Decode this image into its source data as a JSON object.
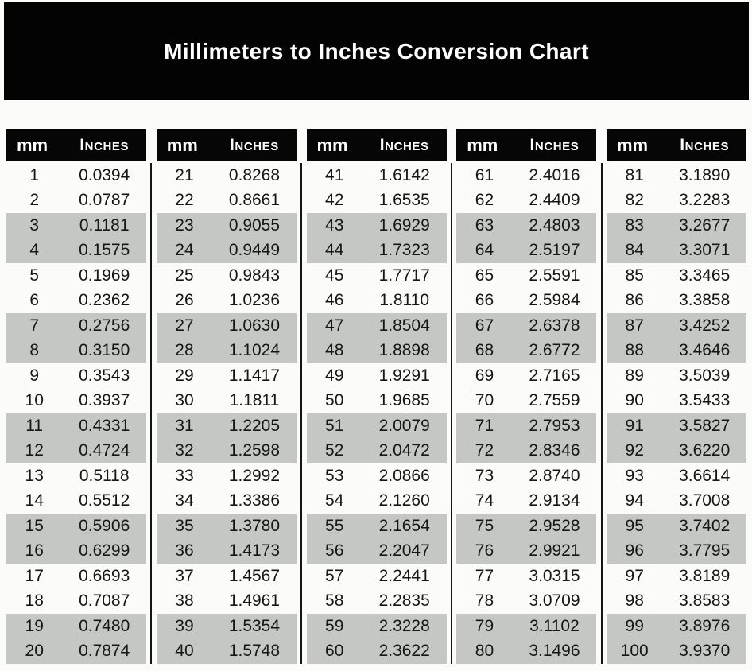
{
  "title": "Millimeters to Inches Conversion Chart",
  "colors": {
    "banner_bg": "#030303",
    "header_bg": "#060606",
    "header_text": "#ffffff",
    "stripe_gray": "#c5c7c4",
    "background": "#fbfbfa",
    "text": "#161616"
  },
  "chart_data": {
    "type": "table",
    "title": "Millimeters to Inches Conversion Chart",
    "columns": [
      "mm",
      "Inches"
    ],
    "stripe_pattern": "rows shaded gray in alternating pairs (rows 3-4, 7-8, 11-12, 15-16, 19-20 of each block)",
    "tables": [
      {
        "rows": [
          [
            "1",
            "0.0394"
          ],
          [
            "2",
            "0.0787"
          ],
          [
            "3",
            "0.1181"
          ],
          [
            "4",
            "0.1575"
          ],
          [
            "5",
            "0.1969"
          ],
          [
            "6",
            "0.2362"
          ],
          [
            "7",
            "0.2756"
          ],
          [
            "8",
            "0.3150"
          ],
          [
            "9",
            "0.3543"
          ],
          [
            "10",
            "0.3937"
          ],
          [
            "11",
            "0.4331"
          ],
          [
            "12",
            "0.4724"
          ],
          [
            "13",
            "0.5118"
          ],
          [
            "14",
            "0.5512"
          ],
          [
            "15",
            "0.5906"
          ],
          [
            "16",
            "0.6299"
          ],
          [
            "17",
            "0.6693"
          ],
          [
            "18",
            "0.7087"
          ],
          [
            "19",
            "0.7480"
          ],
          [
            "20",
            "0.7874"
          ]
        ]
      },
      {
        "rows": [
          [
            "21",
            "0.8268"
          ],
          [
            "22",
            "0.8661"
          ],
          [
            "23",
            "0.9055"
          ],
          [
            "24",
            "0.9449"
          ],
          [
            "25",
            "0.9843"
          ],
          [
            "26",
            "1.0236"
          ],
          [
            "27",
            "1.0630"
          ],
          [
            "28",
            "1.1024"
          ],
          [
            "29",
            "1.1417"
          ],
          [
            "30",
            "1.1811"
          ],
          [
            "31",
            "1.2205"
          ],
          [
            "32",
            "1.2598"
          ],
          [
            "33",
            "1.2992"
          ],
          [
            "34",
            "1.3386"
          ],
          [
            "35",
            "1.3780"
          ],
          [
            "36",
            "1.4173"
          ],
          [
            "37",
            "1.4567"
          ],
          [
            "38",
            "1.4961"
          ],
          [
            "39",
            "1.5354"
          ],
          [
            "40",
            "1.5748"
          ]
        ]
      },
      {
        "rows": [
          [
            "41",
            "1.6142"
          ],
          [
            "42",
            "1.6535"
          ],
          [
            "43",
            "1.6929"
          ],
          [
            "44",
            "1.7323"
          ],
          [
            "45",
            "1.7717"
          ],
          [
            "46",
            "1.8110"
          ],
          [
            "47",
            "1.8504"
          ],
          [
            "48",
            "1.8898"
          ],
          [
            "49",
            "1.9291"
          ],
          [
            "50",
            "1.9685"
          ],
          [
            "51",
            "2.0079"
          ],
          [
            "52",
            "2.0472"
          ],
          [
            "53",
            "2.0866"
          ],
          [
            "54",
            "2.1260"
          ],
          [
            "55",
            "2.1654"
          ],
          [
            "56",
            "2.2047"
          ],
          [
            "57",
            "2.2441"
          ],
          [
            "58",
            "2.2835"
          ],
          [
            "59",
            "2.3228"
          ],
          [
            "60",
            "2.3622"
          ]
        ]
      },
      {
        "rows": [
          [
            "61",
            "2.4016"
          ],
          [
            "62",
            "2.4409"
          ],
          [
            "63",
            "2.4803"
          ],
          [
            "64",
            "2.5197"
          ],
          [
            "65",
            "2.5591"
          ],
          [
            "66",
            "2.5984"
          ],
          [
            "67",
            "2.6378"
          ],
          [
            "68",
            "2.6772"
          ],
          [
            "69",
            "2.7165"
          ],
          [
            "70",
            "2.7559"
          ],
          [
            "71",
            "2.7953"
          ],
          [
            "72",
            "2.8346"
          ],
          [
            "73",
            "2.8740"
          ],
          [
            "74",
            "2.9134"
          ],
          [
            "75",
            "2.9528"
          ],
          [
            "76",
            "2.9921"
          ],
          [
            "77",
            "3.0315"
          ],
          [
            "78",
            "3.0709"
          ],
          [
            "79",
            "3.1102"
          ],
          [
            "80",
            "3.1496"
          ]
        ]
      },
      {
        "rows": [
          [
            "81",
            "3.1890"
          ],
          [
            "82",
            "3.2283"
          ],
          [
            "83",
            "3.2677"
          ],
          [
            "84",
            "3.3071"
          ],
          [
            "85",
            "3.3465"
          ],
          [
            "86",
            "3.3858"
          ],
          [
            "87",
            "3.4252"
          ],
          [
            "88",
            "3.4646"
          ],
          [
            "89",
            "3.5039"
          ],
          [
            "90",
            "3.5433"
          ],
          [
            "91",
            "3.5827"
          ],
          [
            "92",
            "3.6220"
          ],
          [
            "93",
            "3.6614"
          ],
          [
            "94",
            "3.7008"
          ],
          [
            "95",
            "3.7402"
          ],
          [
            "96",
            "3.7795"
          ],
          [
            "97",
            "3.8189"
          ],
          [
            "98",
            "3.8583"
          ],
          [
            "99",
            "3.8976"
          ],
          [
            "100",
            "3.9370"
          ]
        ]
      }
    ]
  }
}
